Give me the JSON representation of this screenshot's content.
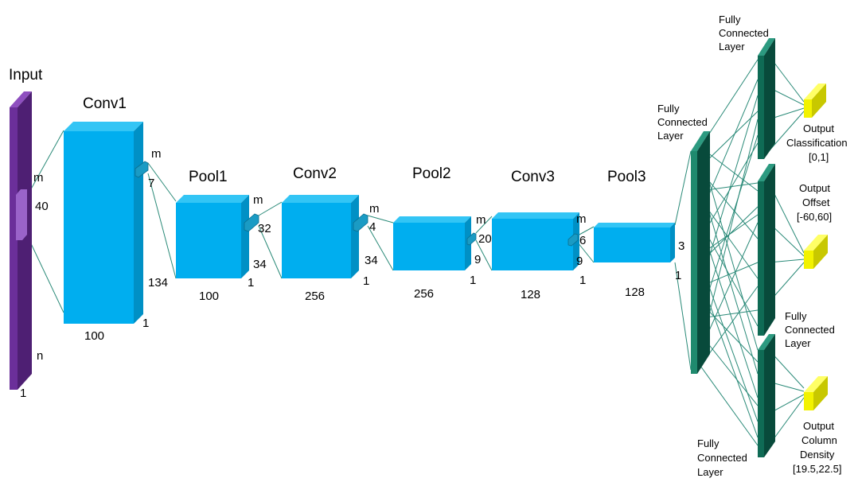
{
  "input": {
    "title": "Input",
    "m": "m",
    "size": "40",
    "n": "n",
    "depth": "1"
  },
  "conv1": {
    "title": "Conv1",
    "width": "100",
    "depth": "1",
    "k_label": "m",
    "k_size": "7",
    "height": "134"
  },
  "pool1": {
    "title": "Pool1",
    "width": "100",
    "depth": "1",
    "k_label": "m",
    "k_size": "32",
    "height": "34"
  },
  "conv2": {
    "title": "Conv2",
    "width": "256",
    "depth": "1",
    "k_label": "m",
    "k_size": "4",
    "height": "34"
  },
  "pool2": {
    "title": "Pool2",
    "width": "256",
    "depth": "1",
    "k_label": "m",
    "k_size": "20",
    "height": "9"
  },
  "conv3": {
    "title": "Conv3",
    "width": "128",
    "depth": "1",
    "k_label": "m",
    "k_size": "6",
    "height": "9"
  },
  "pool3": {
    "title": "Pool3",
    "width": "128",
    "depth": "1",
    "height": "3"
  },
  "fc_main": {
    "line1": "Fully",
    "line2": "Connected",
    "line3": "Layer"
  },
  "fc_top": {
    "line1": "Fully",
    "line2": "Connected",
    "line3": "Layer"
  },
  "fc_mid": {
    "line1": "Fully",
    "line2": "Connected",
    "line3": "Layer"
  },
  "fc_bot": {
    "line1": "Fully",
    "line2": "Connected",
    "line3": "Layer"
  },
  "out_class": {
    "line1": "Output",
    "line2": "Classification",
    "line3": "[0,1]"
  },
  "out_offset": {
    "line1": "Output",
    "line2": "Offset",
    "line3": "[-60,60]"
  },
  "out_density": {
    "line1": "Output",
    "line2": "Column",
    "line3": "Density",
    "line4": "[19.5,22.5]"
  },
  "colors": {
    "input_front": "#6b2f9a",
    "input_side": "#4e1f73",
    "block_front": "#00aeef",
    "block_top": "#33c5f5",
    "block_side": "#0090c5",
    "kernel": "#1a9bc4",
    "fc_front": "#0f6b55",
    "fc_side": "#084a3b",
    "out_front": "#f2f200",
    "out_side": "#c8c800",
    "line": "#2a8a78"
  }
}
